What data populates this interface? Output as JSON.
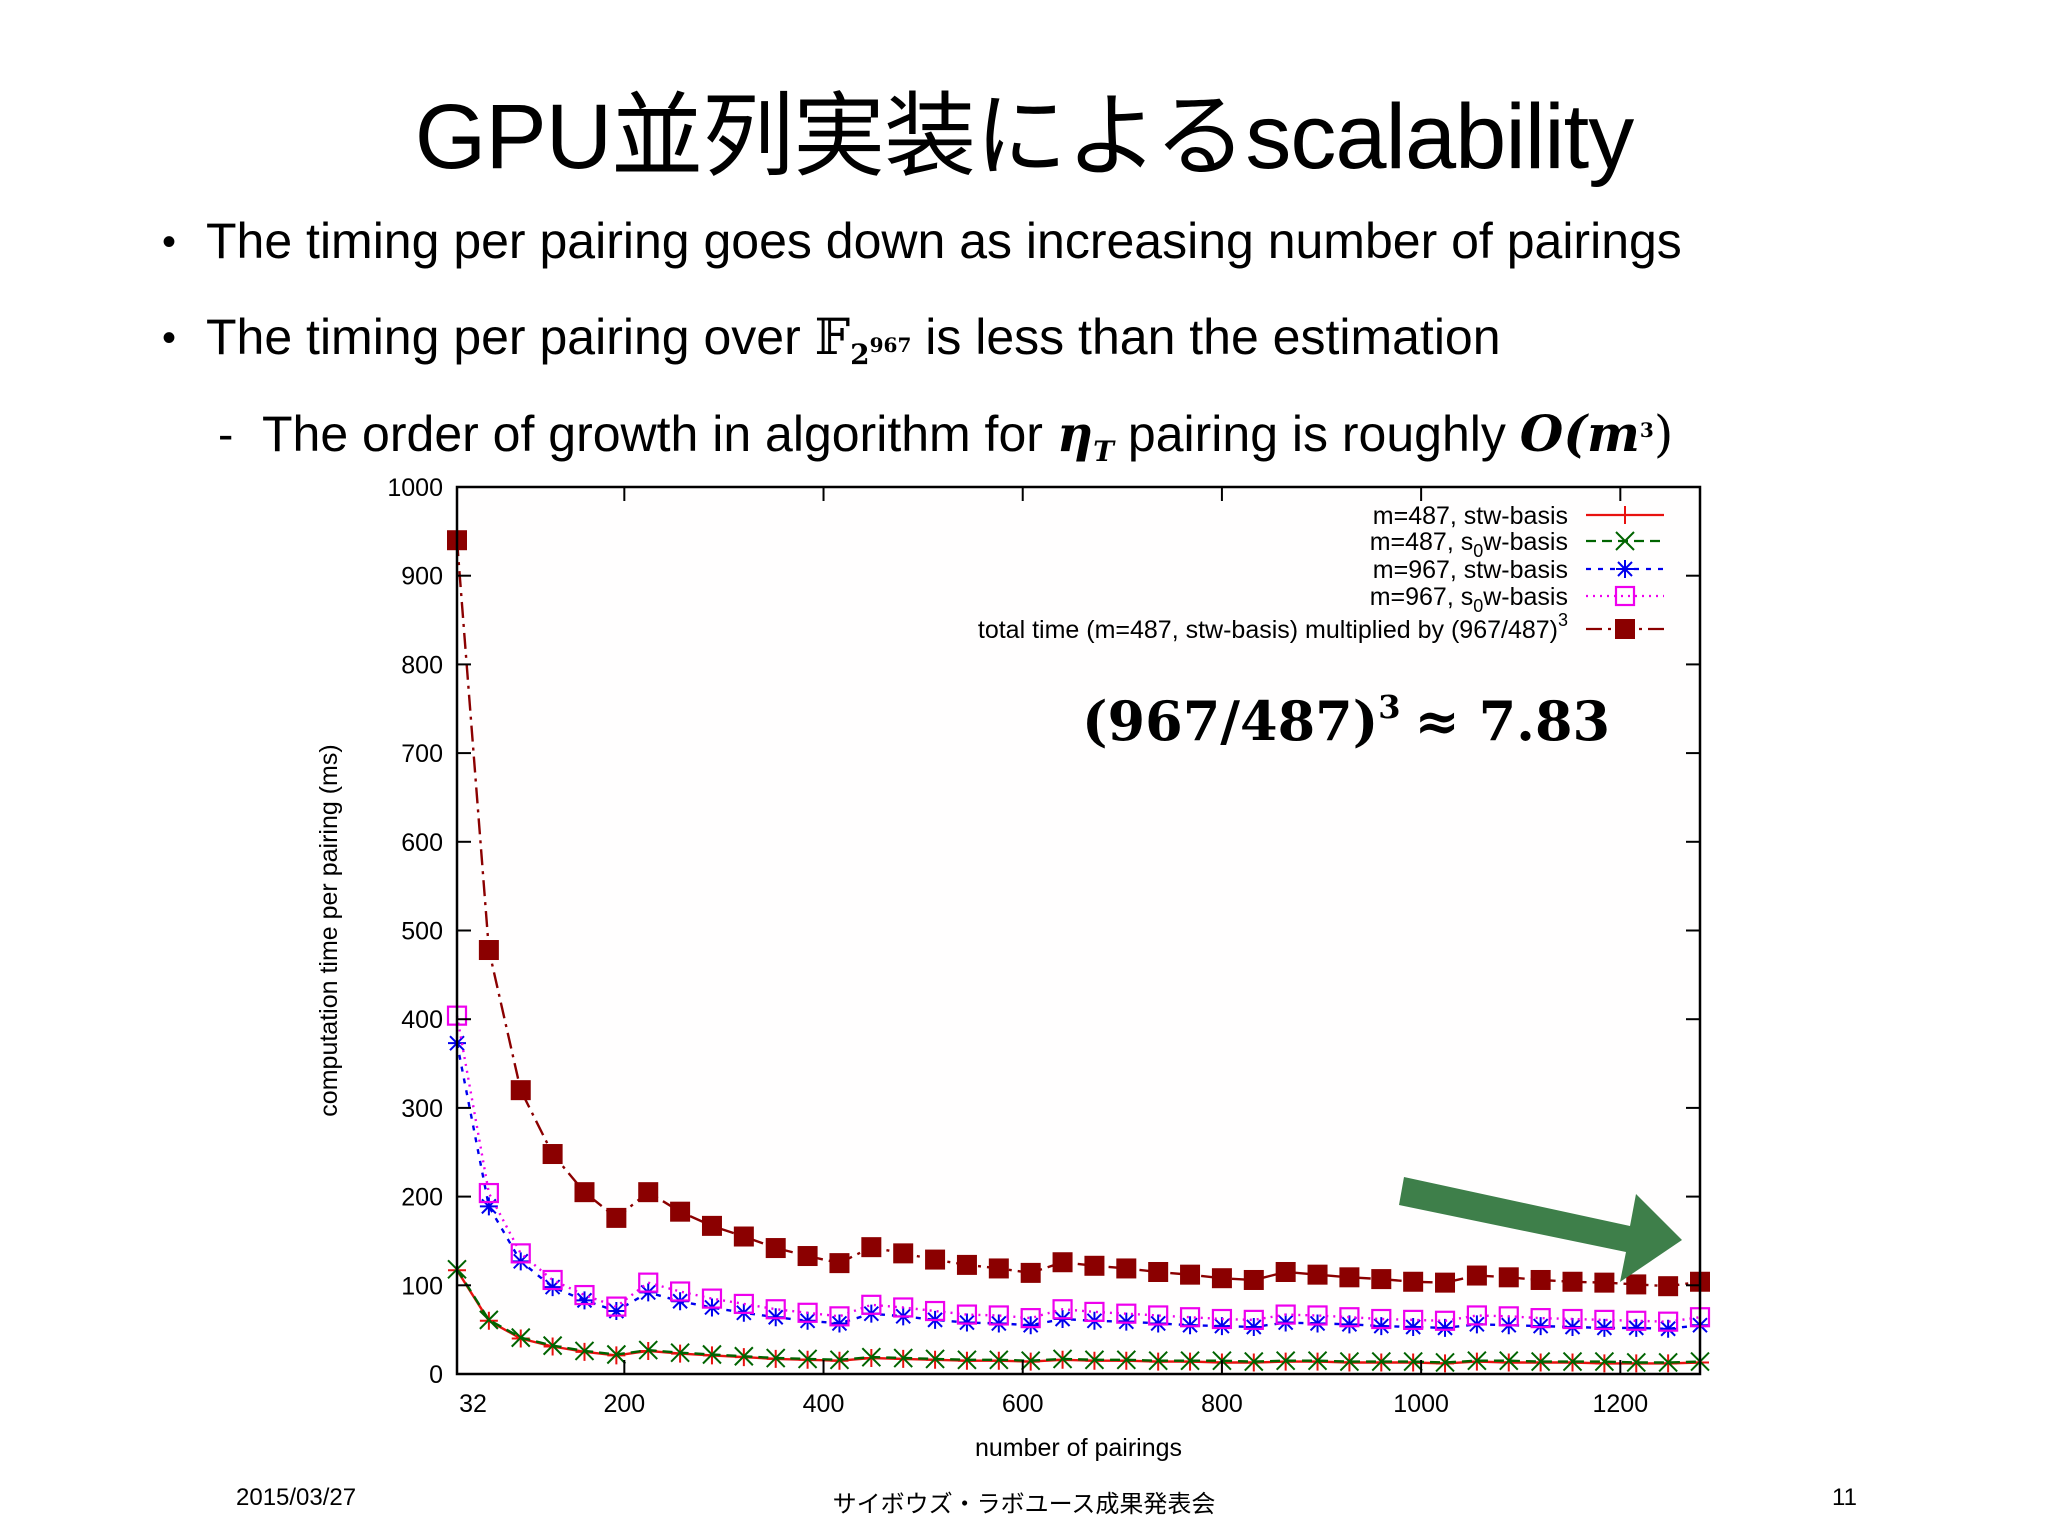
{
  "slide": {
    "title": "GPU並列実装によるscalability",
    "bullets": [
      {
        "marker": "•",
        "text": "The timing per pairing goes down as increasing number of pairings"
      },
      {
        "marker": "•",
        "text_before": "The timing per pairing over ",
        "math_field": "𝔽",
        "math_sub_base": "2",
        "math_sub_exp": "967",
        "text_after": " is less than the estimation"
      },
      {
        "marker": "-",
        "text_before": "The order of growth in algorithm for ",
        "math_eta": "η",
        "math_eta_sub": "T",
        "text_mid": " pairing is roughly ",
        "math_o": "O(m",
        "math_o_exp": "3",
        "math_o_close": ")"
      }
    ],
    "annotation": {
      "text": "(967/487)",
      "exp": "3",
      "approx": "≈ 7.83"
    },
    "trend_arrow": {
      "icon": "trend-down-arrow-icon",
      "color": "#3e7f4a"
    },
    "footer": {
      "date": "2015/03/27",
      "event": "サイボウズ・ラボユース成果発表会",
      "page": "11"
    }
  },
  "chart_data": {
    "type": "line",
    "title": "",
    "xlabel": "number of pairings",
    "ylabel": "computation time per pairing (ms)",
    "xlim": [
      32,
      1280
    ],
    "ylim": [
      0,
      1000
    ],
    "xticks": [
      32,
      200,
      400,
      600,
      800,
      1000,
      1200
    ],
    "yticks": [
      0,
      100,
      200,
      300,
      400,
      500,
      600,
      700,
      800,
      900,
      1000
    ],
    "grid": false,
    "legend_position": "top-right",
    "x": [
      32,
      64,
      96,
      128,
      160,
      192,
      224,
      256,
      288,
      320,
      352,
      384,
      416,
      448,
      480,
      512,
      544,
      576,
      608,
      640,
      672,
      704,
      736,
      768,
      800,
      832,
      864,
      896,
      928,
      960,
      992,
      1024,
      1056,
      1088,
      1120,
      1152,
      1184,
      1216,
      1248,
      1280
    ],
    "series": [
      {
        "name": "m=487, stw-basis",
        "legend_label": "m=487, stw-basis",
        "color": "#e8110f",
        "dash": "",
        "marker": "plus",
        "values": [
          117,
          60,
          40,
          31,
          25,
          21,
          26,
          23,
          21,
          19,
          17,
          16,
          15,
          18,
          17,
          16,
          15,
          15,
          14,
          16,
          15,
          15,
          14,
          14,
          13,
          13,
          14,
          14,
          13,
          13,
          13,
          12,
          14,
          13,
          13,
          13,
          12,
          12,
          12,
          13
        ]
      },
      {
        "name": "m=487, s0w-basis",
        "legend_label": "m=487, s",
        "legend_sub": "0",
        "legend_tail": "w-basis",
        "color": "#006400",
        "dash": "10,6",
        "marker": "cross",
        "values": [
          118,
          61,
          41,
          32,
          26,
          22,
          27,
          24,
          22,
          20,
          18,
          17,
          16,
          19,
          18,
          17,
          16,
          16,
          15,
          17,
          16,
          16,
          15,
          15,
          15,
          14,
          15,
          15,
          14,
          14,
          14,
          13,
          15,
          15,
          14,
          14,
          14,
          13,
          13,
          14
        ]
      },
      {
        "name": "m=967, stw-basis",
        "legend_label": "m=967, stw-basis",
        "color": "#0000ee",
        "dash": "5,7",
        "marker": "star",
        "values": [
          373,
          189,
          127,
          98,
          83,
          71,
          92,
          82,
          75,
          69,
          64,
          60,
          57,
          68,
          65,
          61,
          58,
          57,
          55,
          62,
          60,
          59,
          57,
          55,
          54,
          53,
          58,
          57,
          56,
          54,
          53,
          52,
          56,
          55,
          54,
          53,
          52,
          52,
          51,
          55
        ]
      },
      {
        "name": "m=967, s0w-basis",
        "legend_label": "m=967, s",
        "legend_sub": "0",
        "legend_tail": "w-basis",
        "color": "#ee00ee",
        "dash": "2,5",
        "marker": "box",
        "values": [
          404,
          204,
          136,
          106,
          89,
          76,
          103,
          93,
          85,
          79,
          73,
          69,
          65,
          78,
          75,
          71,
          67,
          66,
          63,
          73,
          70,
          68,
          66,
          64,
          62,
          61,
          67,
          66,
          64,
          62,
          61,
          60,
          66,
          65,
          63,
          62,
          61,
          60,
          59,
          64
        ]
      },
      {
        "name": "total time (m=487, stw-basis) multiplied by (967/487)^3",
        "legend_label": "total time (m=487, stw-basis) multiplied by (967/487)",
        "legend_sup": "3",
        "color": "#8b0000",
        "dash": "16,6,3,6",
        "marker": "filled-box",
        "values": [
          940,
          478,
          320,
          248,
          205,
          176,
          205,
          183,
          167,
          155,
          142,
          133,
          125,
          143,
          136,
          129,
          123,
          119,
          114,
          126,
          122,
          119,
          115,
          112,
          108,
          106,
          115,
          112,
          109,
          107,
          104,
          103,
          111,
          109,
          106,
          104,
          103,
          101,
          99,
          104
        ]
      }
    ]
  }
}
